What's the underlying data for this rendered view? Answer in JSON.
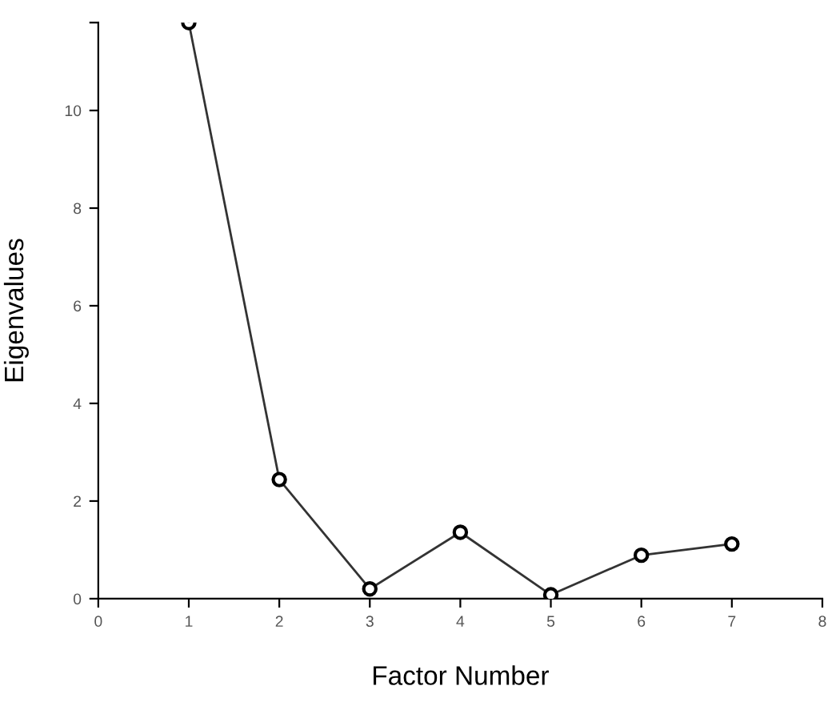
{
  "chart_data": {
    "type": "line",
    "xlabel": "Factor Number",
    "ylabel": "Eigenvalues",
    "x": [
      1,
      2,
      3,
      4,
      5,
      6,
      7
    ],
    "series": [
      {
        "color": "#333333",
        "values": [
          11.8,
          2.44,
          0.2,
          1.36,
          0.08,
          0.89,
          1.12
        ]
      }
    ],
    "xlim": [
      0,
      8
    ],
    "xticks": [
      0,
      1,
      2,
      3,
      4,
      5,
      6,
      7,
      8
    ],
    "ylim": [
      0,
      11.8
    ],
    "yticks": [
      0,
      2,
      4,
      6,
      8,
      10,
      {
        "value": 11.8,
        "label": null
      }
    ],
    "marker": "circle",
    "line_style": "solid",
    "grid": false,
    "legend": false
  }
}
